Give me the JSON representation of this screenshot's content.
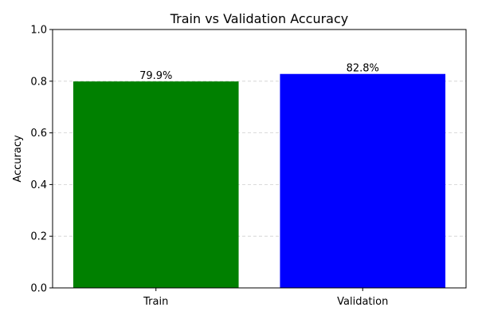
{
  "chart_data": {
    "type": "bar",
    "title": "Train vs Validation Accuracy",
    "xlabel": "",
    "ylabel": "Accuracy",
    "categories": [
      "Train",
      "Validation"
    ],
    "values": [
      0.799,
      0.828
    ],
    "data_labels": [
      "79.9%",
      "82.8%"
    ],
    "colors": [
      "#008000",
      "#0000ff"
    ],
    "ylim": [
      0,
      1.0
    ],
    "yticks": [
      0.0,
      0.2,
      0.4,
      0.6,
      0.8,
      1.0
    ],
    "ytick_labels": [
      "0.0",
      "0.2",
      "0.4",
      "0.6",
      "0.8",
      "1.0"
    ],
    "grid": "y-dashed",
    "legend": "none"
  }
}
